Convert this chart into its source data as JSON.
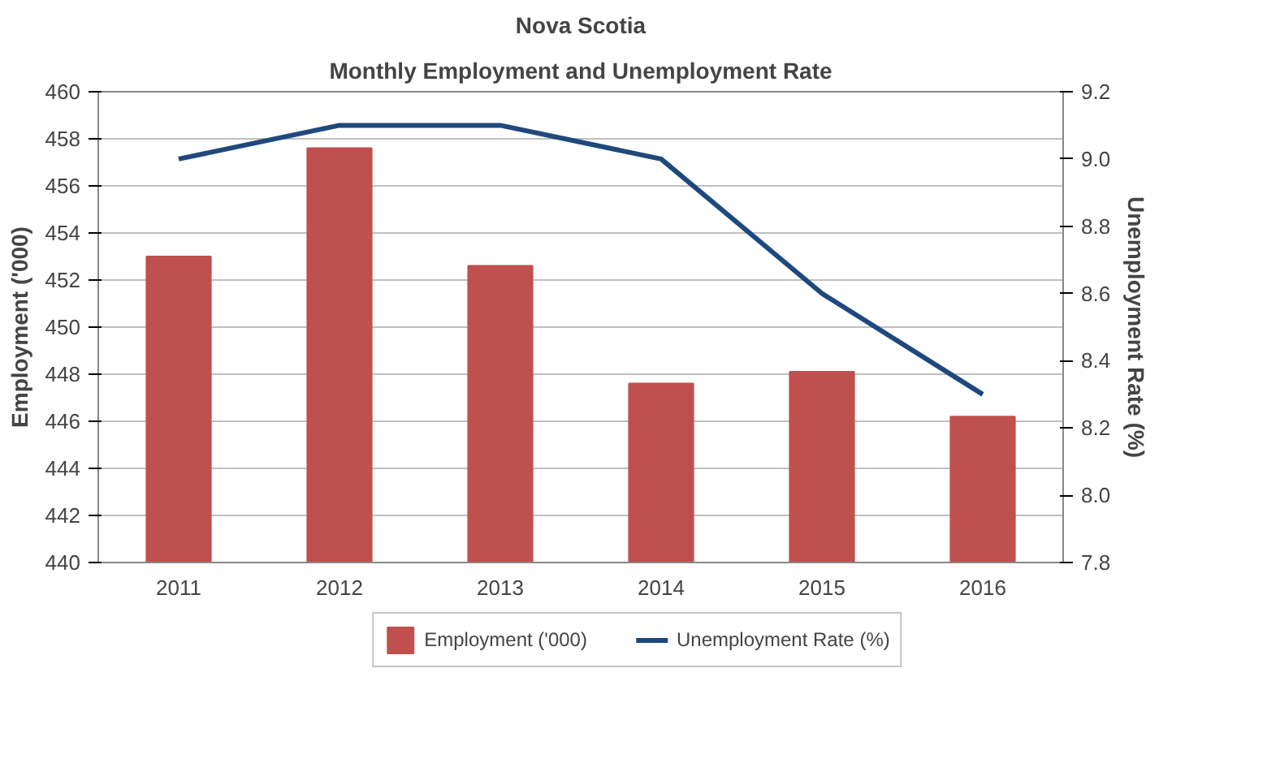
{
  "chart_data": {
    "type": "bar",
    "title": "Nova Scotia",
    "subtitle": "Monthly Employment and Unemployment Rate",
    "categories": [
      "2011",
      "2012",
      "2013",
      "2014",
      "2015",
      "2016"
    ],
    "series": [
      {
        "name": "Employment ('000)",
        "color": "#c0504d",
        "values": [
          453.0,
          457.6,
          452.6,
          447.6,
          448.1,
          446.2
        ]
      },
      {
        "name": "Unemployment Rate (%)",
        "type": "line",
        "axis": "y2",
        "color": "#1f497d",
        "values": [
          9.0,
          9.1,
          9.1,
          9.0,
          8.6,
          8.3
        ]
      }
    ],
    "ylabel": "Employment ('000)",
    "y2label": "Unemployment Rate (%)",
    "ylim": [
      440,
      460
    ],
    "yticks": [
      440,
      442,
      444,
      446,
      448,
      450,
      452,
      454,
      456,
      458,
      460
    ],
    "y2lim": [
      7.8,
      9.2
    ],
    "y2ticks": [
      {
        "value": 7.8,
        "label": "7.8"
      },
      {
        "value": 8.0,
        "label": "8.0"
      },
      {
        "value": 8.2,
        "label": "8.2"
      },
      {
        "value": 8.4,
        "label": "8.4"
      },
      {
        "value": 8.6,
        "label": "8.6"
      },
      {
        "value": 8.8,
        "label": "8.8"
      },
      {
        "value": 9.0,
        "label": "9.0"
      },
      {
        "value": 9.2,
        "label": "9.2"
      }
    ],
    "grid": "y",
    "legend": "bottom",
    "marker": "none",
    "line_style": "solid"
  }
}
